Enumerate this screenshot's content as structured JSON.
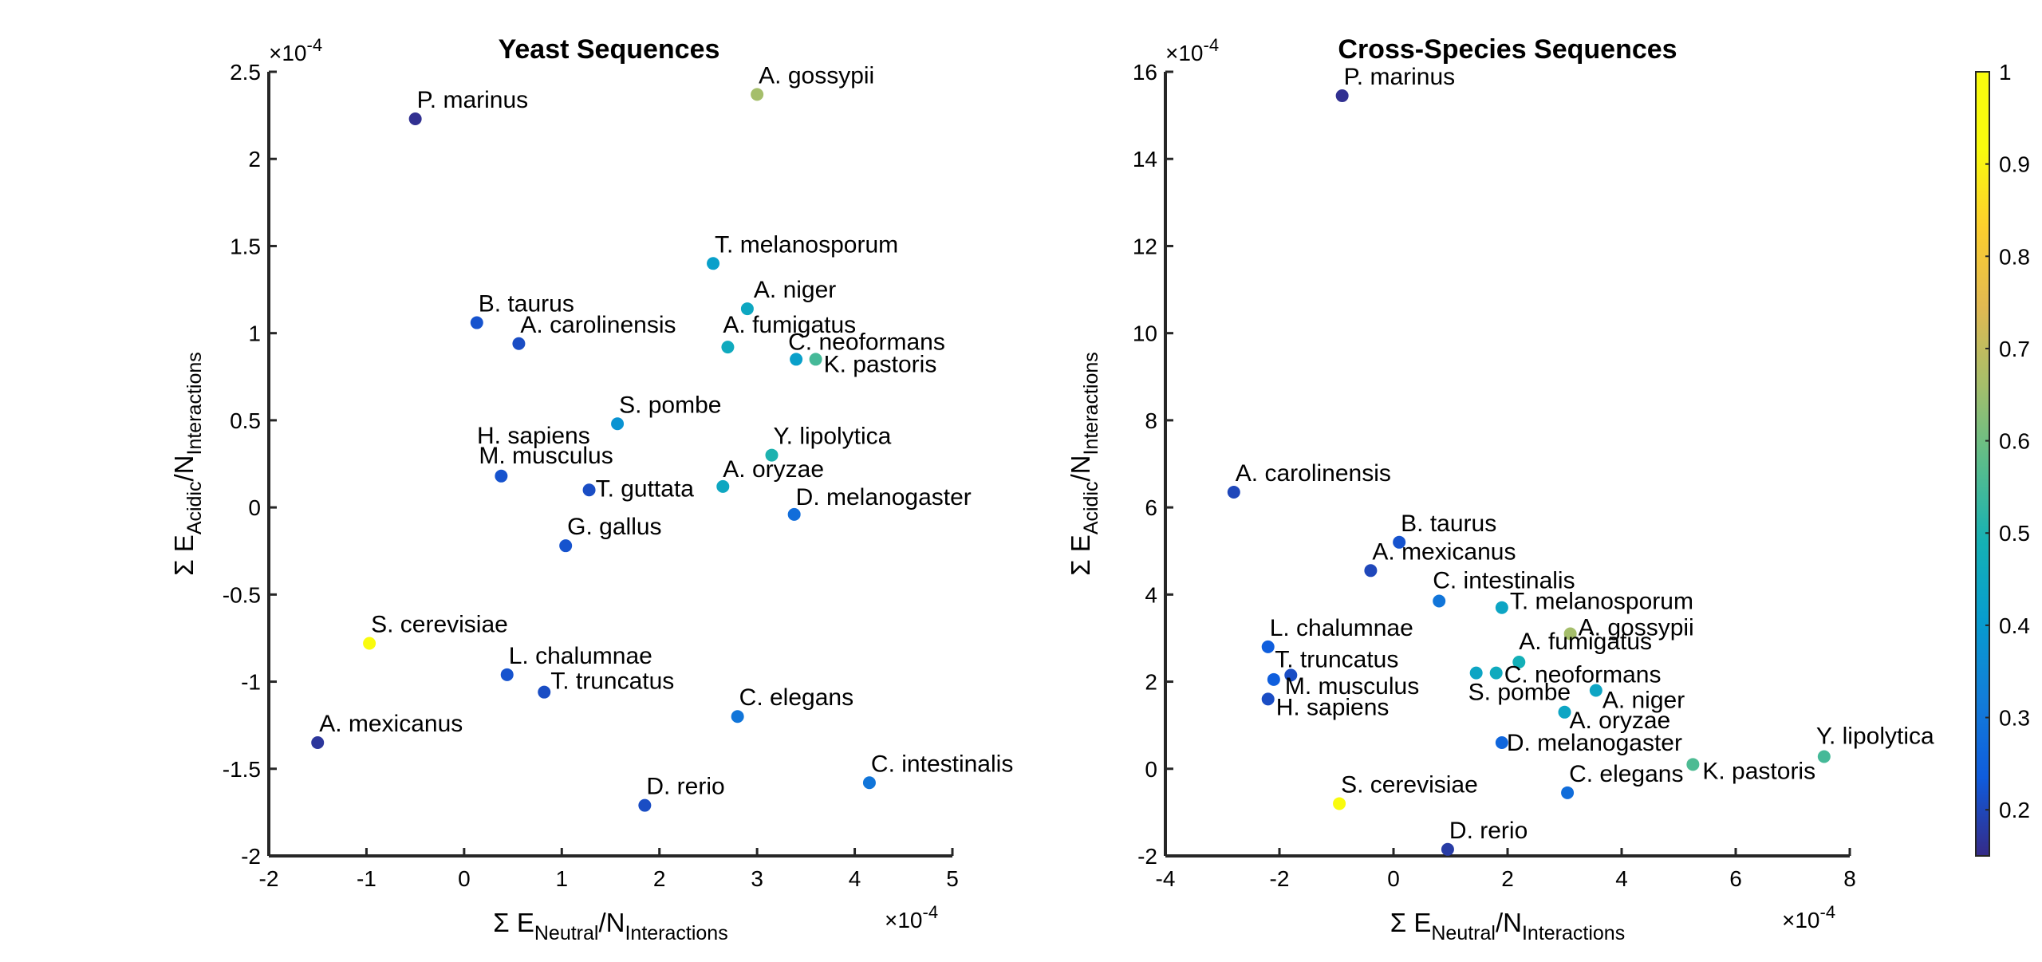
{
  "chart_data": [
    {
      "type": "scatter",
      "title": "Yeast Sequences",
      "xlabel": {
        "prefix": "Σ E",
        "sub1": "Neutral",
        "mid": "/N",
        "sub2": "Interactions"
      },
      "ylabel": {
        "prefix": "Σ E",
        "sub1": "Acidic",
        "mid": "/N",
        "sub2": "Interactions"
      },
      "x_exponent": "×10",
      "x_exponent_power": "-4",
      "y_exponent": "×10",
      "y_exponent_power": "-4",
      "xlim": [
        -2,
        5
      ],
      "ylim": [
        -2,
        2.5
      ],
      "xticks": [
        -2,
        -1,
        0,
        1,
        2,
        3,
        4,
        5
      ],
      "xtick_labels": [
        "-2",
        "-1",
        "0",
        "1",
        "2",
        "3",
        "4",
        "5"
      ],
      "yticks": [
        -2,
        -1.5,
        -1,
        -0.5,
        0,
        0.5,
        1,
        1.5,
        2,
        2.5
      ],
      "ytick_labels": [
        "-2",
        "-1.5",
        "-1",
        "-0.5",
        "0",
        "0.5",
        "1",
        "1.5",
        "2",
        "2.5"
      ],
      "points": [
        {
          "label": "P. marinus",
          "x": -0.5,
          "y": 2.23,
          "c": 0.16
        },
        {
          "label": "A. gossypii",
          "x": 3.0,
          "y": 2.37,
          "c": 0.66
        },
        {
          "label": "T. melanosporum",
          "x": 2.55,
          "y": 1.4,
          "c": 0.42
        },
        {
          "label": "A. niger",
          "x": 2.9,
          "y": 1.14,
          "c": 0.45
        },
        {
          "label": "B. taurus",
          "x": 0.13,
          "y": 1.06,
          "c": 0.22
        },
        {
          "label": "A. carolinensis",
          "x": 0.56,
          "y": 0.94,
          "c": 0.21
        },
        {
          "label": "A. fumigatus",
          "x": 2.7,
          "y": 0.92,
          "c": 0.46
        },
        {
          "label": "C. neoformans",
          "x": 3.4,
          "y": 0.85,
          "c": 0.42
        },
        {
          "label": "K. pastoris",
          "x": 3.6,
          "y": 0.85,
          "c": 0.55
        },
        {
          "label": "S. pombe",
          "x": 1.57,
          "y": 0.48,
          "c": 0.38
        },
        {
          "label": "H. sapiens",
          "x": null,
          "y": null,
          "c": null
        },
        {
          "label": "Y. lipolytica",
          "x": 3.15,
          "y": 0.3,
          "c": 0.5
        },
        {
          "label": "M. musculus",
          "x": 0.38,
          "y": 0.18,
          "c": 0.22
        },
        {
          "label": "T. guttata",
          "x": 1.28,
          "y": 0.1,
          "c": 0.21
        },
        {
          "label": "A. oryzae",
          "x": 2.65,
          "y": 0.12,
          "c": 0.45
        },
        {
          "label": "D. melanogaster",
          "x": 3.38,
          "y": -0.04,
          "c": 0.28
        },
        {
          "label": "G. gallus",
          "x": 1.04,
          "y": -0.22,
          "c": 0.22
        },
        {
          "label": "S. cerevisiae",
          "x": -0.97,
          "y": -0.78,
          "c": 1.0
        },
        {
          "label": "L. chalumnae",
          "x": 0.44,
          "y": -0.96,
          "c": 0.22
        },
        {
          "label": "T. truncatus",
          "x": 0.82,
          "y": -1.06,
          "c": 0.21
        },
        {
          "label": "C. elegans",
          "x": 2.8,
          "y": -1.2,
          "c": 0.3
        },
        {
          "label": "A. mexicanus",
          "x": -1.5,
          "y": -1.35,
          "c": 0.17
        },
        {
          "label": "C. intestinalis",
          "x": 4.15,
          "y": -1.58,
          "c": 0.3
        },
        {
          "label": "D. rerio",
          "x": 1.85,
          "y": -1.71,
          "c": 0.21
        }
      ]
    },
    {
      "type": "scatter",
      "title": "Cross-Species Sequences",
      "xlabel": {
        "prefix": "Σ E",
        "sub1": "Neutral",
        "mid": "/N",
        "sub2": "Interactions"
      },
      "ylabel": {
        "prefix": "Σ E",
        "sub1": "Acidic",
        "mid": "/N",
        "sub2": "Interactions"
      },
      "x_exponent": "×10",
      "x_exponent_power": "-4",
      "y_exponent": "×10",
      "y_exponent_power": "-4",
      "xlim": [
        -4,
        8
      ],
      "ylim": [
        -2,
        16
      ],
      "xticks": [
        -4,
        -2,
        0,
        2,
        4,
        6,
        8
      ],
      "xtick_labels": [
        "-4",
        "-2",
        "0",
        "2",
        "4",
        "6",
        "8"
      ],
      "yticks": [
        -2,
        0,
        2,
        4,
        6,
        8,
        10,
        12,
        14,
        16
      ],
      "ytick_labels": [
        "-2",
        "0",
        "2",
        "4",
        "6",
        "8",
        "10",
        "12",
        "14",
        "16"
      ],
      "points": [
        {
          "label": "P. marinus",
          "x": -0.9,
          "y": 15.45,
          "c": 0.16
        },
        {
          "label": "A. carolinensis",
          "x": -2.8,
          "y": 6.35,
          "c": 0.2
        },
        {
          "label": "B. taurus",
          "x": 0.1,
          "y": 5.2,
          "c": 0.22
        },
        {
          "label": "A. mexicanus",
          "x": -0.4,
          "y": 4.55,
          "c": 0.2
        },
        {
          "label": "C. intestinalis",
          "x": 0.8,
          "y": 3.85,
          "c": 0.3
        },
        {
          "label": "T. melanosporum",
          "x": 1.9,
          "y": 3.7,
          "c": 0.44
        },
        {
          "label": "A. gossypii",
          "x": 3.1,
          "y": 3.1,
          "c": 0.66
        },
        {
          "label": "L. chalumnae",
          "x": -2.2,
          "y": 2.8,
          "c": 0.24
        },
        {
          "label": "A. fumigatus",
          "x": 2.2,
          "y": 2.45,
          "c": 0.48
        },
        {
          "label": "T. truncatus",
          "x": -1.8,
          "y": 2.15,
          "c": 0.21
        },
        {
          "label": "M. musculus",
          "x": -2.1,
          "y": 2.05,
          "c": 0.24
        },
        {
          "label": "S. pombe",
          "x": 1.45,
          "y": 2.2,
          "c": 0.44
        },
        {
          "label": "C. neoformans",
          "x": 1.8,
          "y": 2.2,
          "c": 0.46
        },
        {
          "label": "A. niger",
          "x": 3.55,
          "y": 1.8,
          "c": 0.44
        },
        {
          "label": "H. sapiens",
          "x": -2.2,
          "y": 1.6,
          "c": 0.21
        },
        {
          "label": "A. oryzae",
          "x": 3.0,
          "y": 1.3,
          "c": 0.44
        },
        {
          "label": "D. melanogaster",
          "x": 1.9,
          "y": 0.6,
          "c": 0.26
        },
        {
          "label": "K. pastoris",
          "x": 5.25,
          "y": 0.1,
          "c": 0.56
        },
        {
          "label": "Y. lipolytica",
          "x": 7.55,
          "y": 0.28,
          "c": 0.55
        },
        {
          "label": "C. elegans",
          "x": 3.05,
          "y": -0.55,
          "c": 0.28
        },
        {
          "label": "S. cerevisiae",
          "x": -0.95,
          "y": -0.8,
          "c": 1.0
        },
        {
          "label": "D. rerio",
          "x": 0.95,
          "y": -1.85,
          "c": 0.18
        }
      ]
    }
  ],
  "colorbar": {
    "ticks": [
      0.2,
      0.3,
      0.4,
      0.5,
      0.6,
      0.7,
      0.8,
      0.9,
      1
    ],
    "tick_labels": [
      "0.2",
      "0.3",
      "0.4",
      "0.5",
      "0.6",
      "0.7",
      "0.8",
      "0.9",
      "1"
    ],
    "range": [
      0.15,
      1.0
    ]
  }
}
